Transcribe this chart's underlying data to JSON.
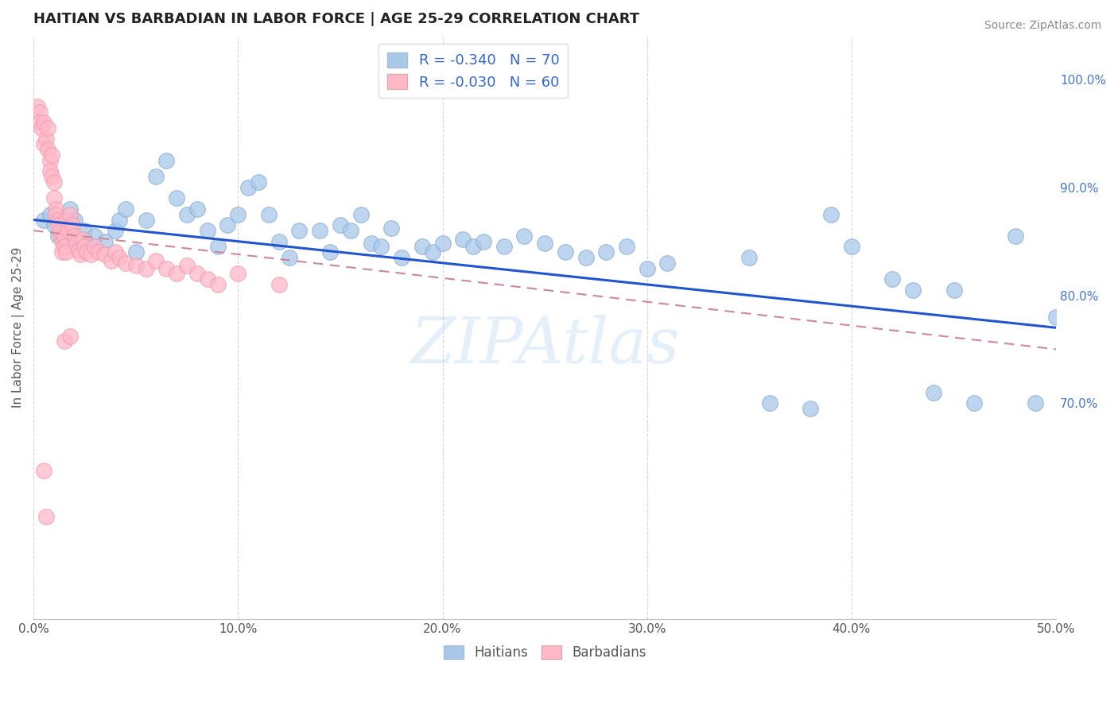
{
  "title": "HAITIAN VS BARBADIAN IN LABOR FORCE | AGE 25-29 CORRELATION CHART",
  "source": "Source: ZipAtlas.com",
  "xlabel": "",
  "ylabel": "In Labor Force | Age 25-29",
  "xlim": [
    0.0,
    0.5
  ],
  "ylim": [
    0.5,
    1.04
  ],
  "xticks": [
    0.0,
    0.1,
    0.2,
    0.3,
    0.4,
    0.5
  ],
  "xtick_labels": [
    "0.0%",
    "10.0%",
    "20.0%",
    "30.0%",
    "40.0%",
    "50.0%"
  ],
  "yticks_right": [
    0.7,
    0.8,
    0.9,
    1.0
  ],
  "ytick_labels_right": [
    "70.0%",
    "80.0%",
    "90.0%",
    "100.0%"
  ],
  "legend_blue_label": "R = -0.340   N = 70",
  "legend_pink_label": "R = -0.030   N = 60",
  "legend_bottom_blue": "Haitians",
  "legend_bottom_pink": "Barbadians",
  "watermark": "ZIPAtlas",
  "blue_points_x": [
    0.005,
    0.008,
    0.01,
    0.012,
    0.015,
    0.015,
    0.018,
    0.02,
    0.022,
    0.025,
    0.028,
    0.03,
    0.035,
    0.04,
    0.042,
    0.045,
    0.05,
    0.055,
    0.06,
    0.065,
    0.07,
    0.075,
    0.08,
    0.085,
    0.09,
    0.095,
    0.1,
    0.105,
    0.11,
    0.115,
    0.12,
    0.125,
    0.13,
    0.14,
    0.145,
    0.15,
    0.155,
    0.16,
    0.165,
    0.17,
    0.175,
    0.18,
    0.19,
    0.195,
    0.2,
    0.21,
    0.215,
    0.22,
    0.23,
    0.24,
    0.25,
    0.26,
    0.27,
    0.28,
    0.29,
    0.3,
    0.31,
    0.35,
    0.36,
    0.38,
    0.39,
    0.4,
    0.42,
    0.43,
    0.44,
    0.45,
    0.46,
    0.48,
    0.49,
    0.5
  ],
  "blue_points_y": [
    0.87,
    0.875,
    0.865,
    0.855,
    0.87,
    0.855,
    0.88,
    0.87,
    0.85,
    0.86,
    0.845,
    0.855,
    0.85,
    0.86,
    0.87,
    0.88,
    0.84,
    0.87,
    0.91,
    0.925,
    0.89,
    0.875,
    0.88,
    0.86,
    0.845,
    0.865,
    0.875,
    0.9,
    0.905,
    0.875,
    0.85,
    0.835,
    0.86,
    0.86,
    0.84,
    0.865,
    0.86,
    0.875,
    0.848,
    0.845,
    0.862,
    0.835,
    0.845,
    0.84,
    0.848,
    0.852,
    0.845,
    0.85,
    0.845,
    0.855,
    0.848,
    0.84,
    0.835,
    0.84,
    0.845,
    0.825,
    0.83,
    0.835,
    0.7,
    0.695,
    0.875,
    0.845,
    0.815,
    0.805,
    0.71,
    0.805,
    0.7,
    0.855,
    0.7,
    0.78
  ],
  "pink_points_x": [
    0.002,
    0.003,
    0.003,
    0.004,
    0.005,
    0.005,
    0.006,
    0.007,
    0.007,
    0.008,
    0.008,
    0.009,
    0.009,
    0.01,
    0.01,
    0.011,
    0.011,
    0.012,
    0.012,
    0.013,
    0.013,
    0.014,
    0.014,
    0.015,
    0.015,
    0.016,
    0.016,
    0.017,
    0.018,
    0.019,
    0.02,
    0.021,
    0.022,
    0.023,
    0.024,
    0.025,
    0.026,
    0.028,
    0.03,
    0.032,
    0.035,
    0.038,
    0.04,
    0.042,
    0.045,
    0.05,
    0.055,
    0.06,
    0.065,
    0.07,
    0.075,
    0.08,
    0.085,
    0.09,
    0.1,
    0.12,
    0.015,
    0.018,
    0.005,
    0.006
  ],
  "pink_points_y": [
    0.975,
    0.97,
    0.96,
    0.955,
    0.94,
    0.96,
    0.945,
    0.935,
    0.955,
    0.925,
    0.915,
    0.93,
    0.91,
    0.905,
    0.89,
    0.88,
    0.875,
    0.87,
    0.865,
    0.855,
    0.86,
    0.85,
    0.84,
    0.855,
    0.845,
    0.84,
    0.87,
    0.86,
    0.875,
    0.865,
    0.855,
    0.848,
    0.842,
    0.838,
    0.852,
    0.845,
    0.84,
    0.838,
    0.845,
    0.84,
    0.838,
    0.832,
    0.84,
    0.835,
    0.83,
    0.828,
    0.825,
    0.832,
    0.825,
    0.82,
    0.828,
    0.82,
    0.815,
    0.81,
    0.82,
    0.81,
    0.758,
    0.762,
    0.638,
    0.595
  ],
  "blue_line_x0": 0.0,
  "blue_line_y0": 0.87,
  "blue_line_x1": 0.5,
  "blue_line_y1": 0.77,
  "pink_line_x0": 0.0,
  "pink_line_y0": 0.86,
  "pink_line_x1": 0.5,
  "pink_line_y1": 0.75
}
